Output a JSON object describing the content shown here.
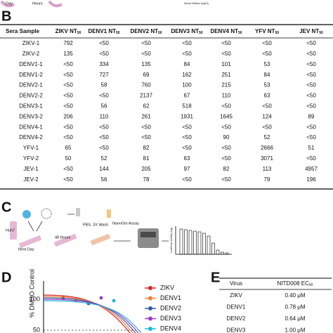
{
  "panel_a": {
    "labels": [
      "Day",
      "Hours",
      "Serum Dilution (log10)"
    ]
  },
  "panel_b": {
    "label": "B",
    "table": {
      "header": [
        {
          "main": "Sera Sample"
        },
        {
          "main": "ZIKV NT",
          "sub": "50"
        },
        {
          "main": "DENV1 NT",
          "sub": "50"
        },
        {
          "main": "DENV2 NT",
          "sub": "50"
        },
        {
          "main": "DENV3 NT",
          "sub": "50"
        },
        {
          "main": "DENV4 NT",
          "sub": "50"
        },
        {
          "main": "YFV NT",
          "sub": "50"
        },
        {
          "main": "JEV NT",
          "sub": "50"
        }
      ],
      "rows": [
        [
          "ZIKV-1",
          "792",
          "<50",
          "<50",
          "<50",
          "<50",
          "<50",
          "<50"
        ],
        [
          "ZIKV-2",
          "135",
          "<50",
          "<50",
          "<50",
          "<50",
          "<50",
          "<50"
        ],
        [
          "DENV1-1",
          "<50",
          "334",
          "135",
          "84",
          "101",
          "53",
          "<50"
        ],
        [
          "DENV1-2",
          "<50",
          "727",
          "69",
          "162",
          "251",
          "84",
          "<50"
        ],
        [
          "DENV2-1",
          "<50",
          "58",
          "760",
          "100",
          "215",
          "53",
          "<50"
        ],
        [
          "DENV2-2",
          "<50",
          "<50",
          "2137",
          "67",
          "110",
          "63",
          "<50"
        ],
        [
          "DENV3-1",
          "<50",
          "56",
          "62",
          "518",
          "<50",
          "<50",
          "<50"
        ],
        [
          "DENV3-2",
          "206",
          "110",
          "261",
          "1931",
          "1645",
          "124",
          "89"
        ],
        [
          "DENV4-1",
          "<50",
          "<50",
          "<50",
          "<50",
          "<50",
          "<50",
          "<50"
        ],
        [
          "DENV4-2",
          "<50",
          "<50",
          "<50",
          "<50",
          "90",
          "52",
          "<50"
        ],
        [
          "YFV-1",
          "65",
          "<50",
          "82",
          "<50",
          "<50",
          "2666",
          "51"
        ],
        [
          "YFV-2",
          "50",
          "52",
          "81",
          "63",
          "<50",
          "3071",
          "<50"
        ],
        [
          "JEV-1",
          "<50",
          "144",
          "205",
          "97",
          "82",
          "113",
          "4957"
        ],
        [
          "JEV-2",
          "<50",
          "56",
          "78",
          "<50",
          "<50",
          "79",
          "196"
        ]
      ]
    }
  },
  "panel_c": {
    "label": "C",
    "labels": [
      "Huh7",
      "Next Day",
      "48 Hours",
      "PBS, 3X Wash",
      "NanoGlo Assay",
      "Luciferase Activity (log)"
    ]
  },
  "panel_d": {
    "label": "D",
    "y_axis_label": "% DMSO Control",
    "yticks": [
      "100",
      "50"
    ],
    "legend": [
      {
        "name": "ZIKV",
        "color": "#d62728"
      },
      {
        "name": "DENV1",
        "color": "#f07f3c"
      },
      {
        "name": "DENV2",
        "color": "#2e5fa8"
      },
      {
        "name": "DENV3",
        "color": "#9b3fc0"
      },
      {
        "name": "DENV4",
        "color": "#1fb8d8"
      }
    ]
  },
  "panel_e": {
    "label": "E",
    "header": [
      {
        "main": "Virus"
      },
      {
        "main": "NITD008 EC",
        "sub": "50"
      }
    ],
    "rows": [
      [
        "ZIKV",
        "0.40 μM"
      ],
      [
        "DENV1",
        "0.78 μM"
      ],
      [
        "DENV2",
        "0.64 μM"
      ],
      [
        "DENV3",
        "1.00 μM"
      ]
    ]
  }
}
